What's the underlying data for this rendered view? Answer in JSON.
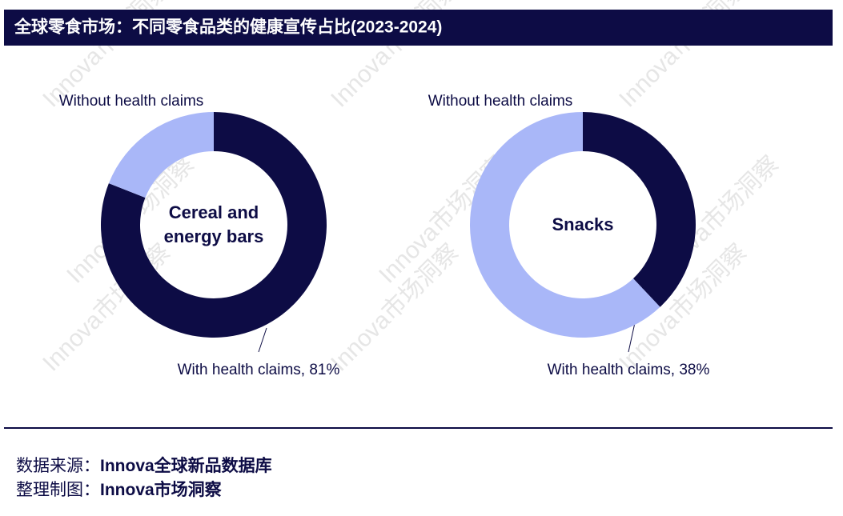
{
  "header": {
    "title": "全球零食市场：不同零食品类的健康宣传占比(2023-2024)"
  },
  "chart_data": [
    {
      "type": "donut",
      "center_label": "Cereal and energy bars",
      "categories": [
        "With health claims, 81%",
        "Without health claims"
      ],
      "values": [
        81,
        19
      ],
      "colors": [
        "#0d0c45",
        "#a9b7f8"
      ]
    },
    {
      "type": "donut",
      "center_label": "Snacks",
      "categories": [
        "With health claims, 38%",
        "Without health claims"
      ],
      "values": [
        38,
        62
      ],
      "colors": [
        "#0d0c45",
        "#a9b7f8"
      ]
    }
  ],
  "footer": {
    "source_label": "数据来源：",
    "source": "Innova全球新品数据库",
    "made_label": "整理制图：",
    "made": "Innova市场洞察"
  },
  "watermark": "Innova市场洞察"
}
